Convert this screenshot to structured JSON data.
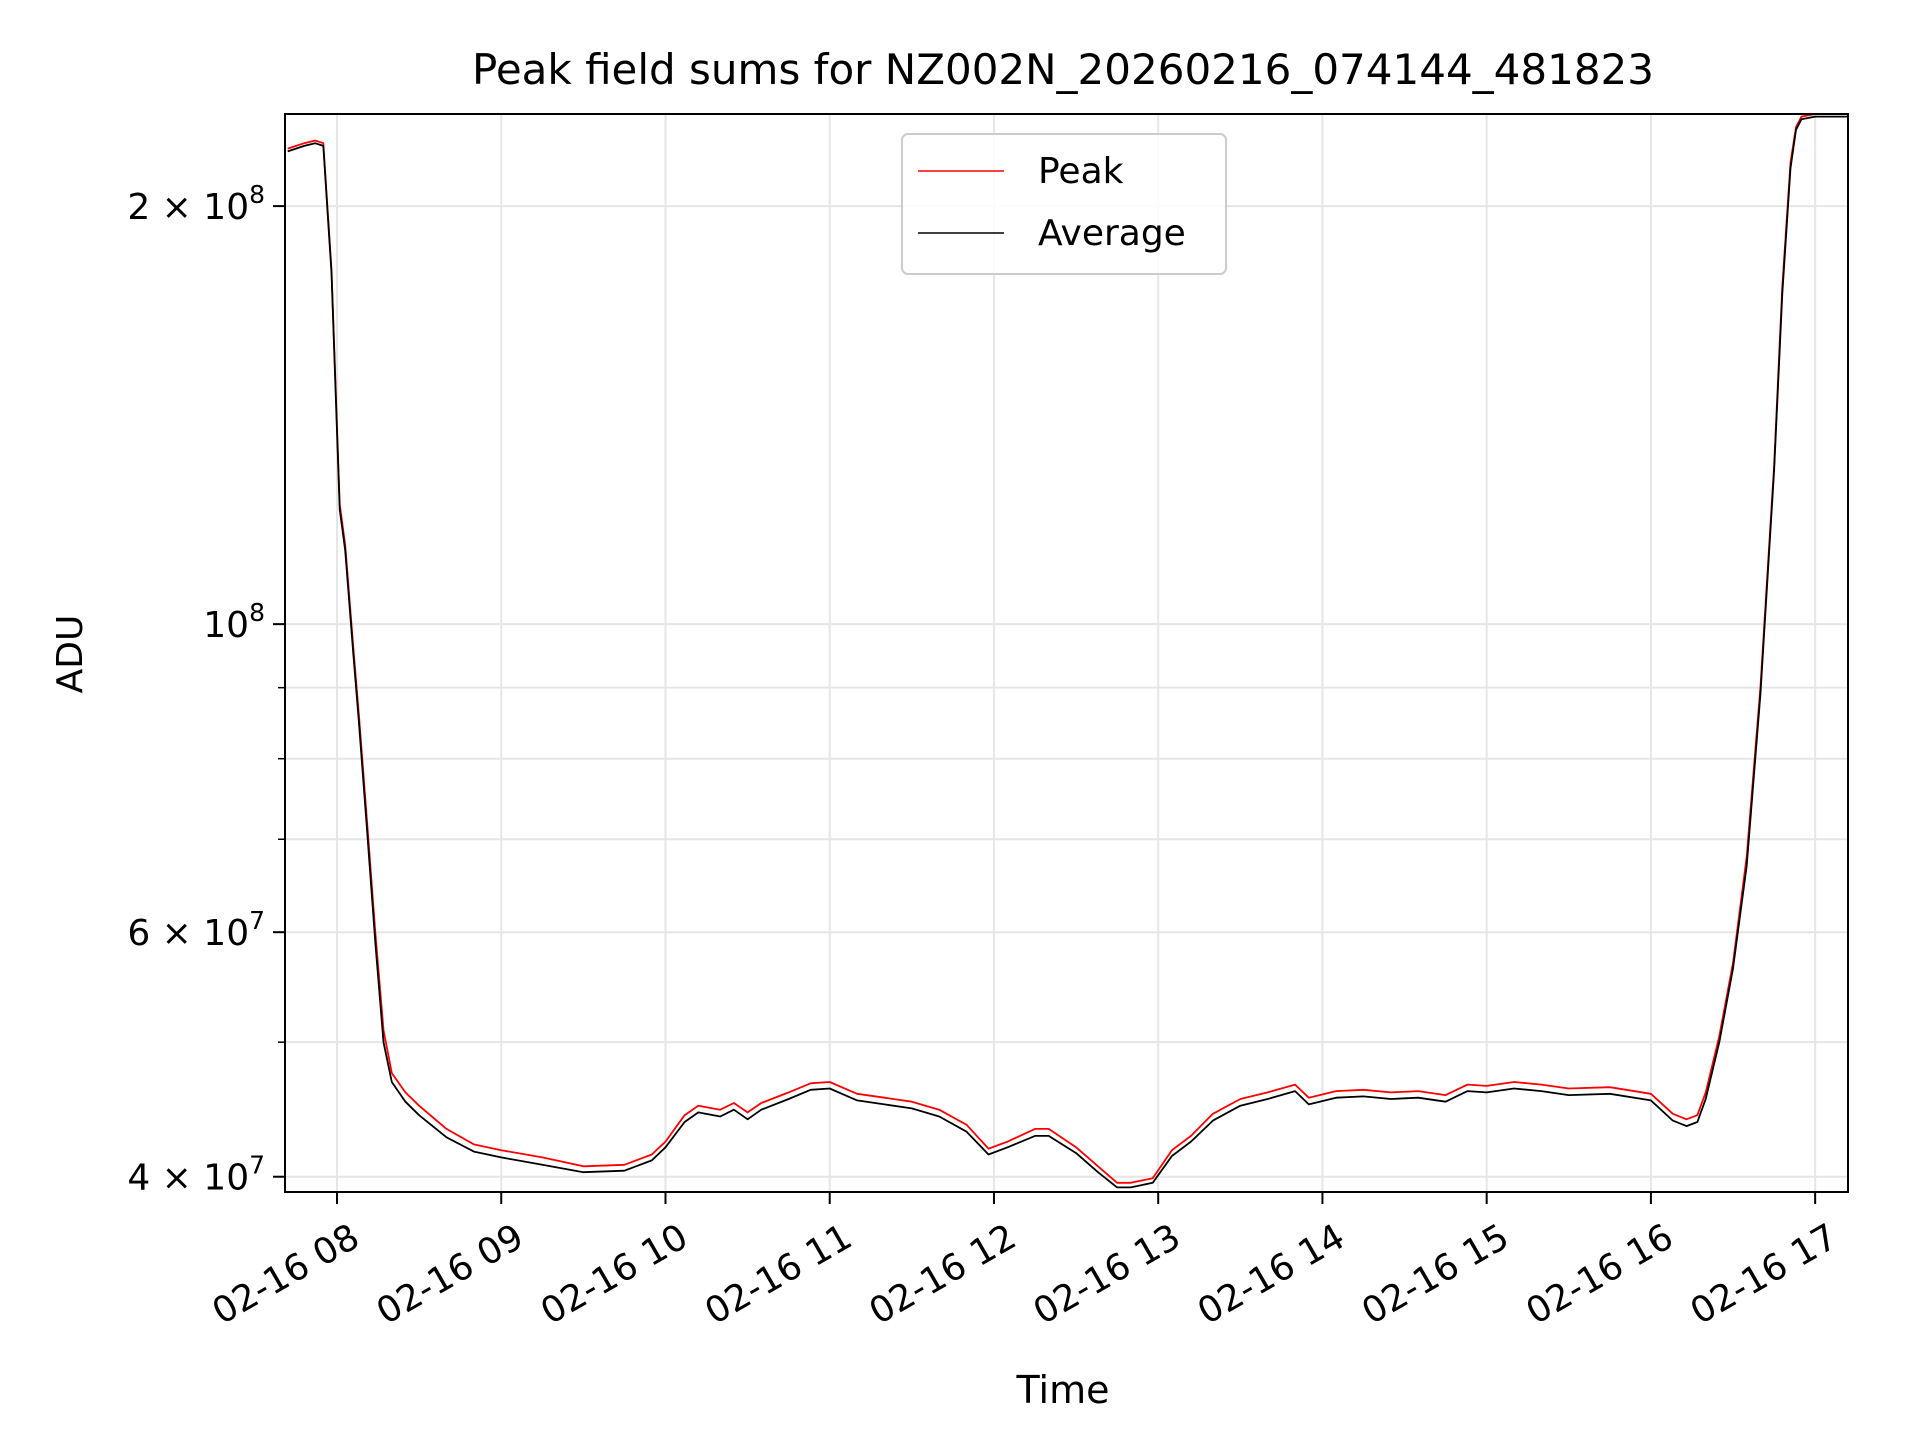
{
  "chart_data": {
    "type": "line",
    "title": "Peak field sums for NZ002N_20260216_074144_481823",
    "xlabel": "Time",
    "ylabel": "ADU",
    "x_range": [
      "2026-02-16T07:41:00",
      "2026-02-16T17:12:00"
    ],
    "y_range": [
      39000000,
      233000000
    ],
    "y_scale": "log",
    "grid": true,
    "legend_position": "top-center",
    "x_ticks": [
      {
        "value": "2026-02-16T08:00:00",
        "label": "02-16 08"
      },
      {
        "value": "2026-02-16T09:00:00",
        "label": "02-16 09"
      },
      {
        "value": "2026-02-16T10:00:00",
        "label": "02-16 10"
      },
      {
        "value": "2026-02-16T11:00:00",
        "label": "02-16 11"
      },
      {
        "value": "2026-02-16T12:00:00",
        "label": "02-16 12"
      },
      {
        "value": "2026-02-16T13:00:00",
        "label": "02-16 13"
      },
      {
        "value": "2026-02-16T14:00:00",
        "label": "02-16 14"
      },
      {
        "value": "2026-02-16T15:00:00",
        "label": "02-16 15"
      },
      {
        "value": "2026-02-16T16:00:00",
        "label": "02-16 16"
      },
      {
        "value": "2026-02-16T17:00:00",
        "label": "02-16 17"
      }
    ],
    "y_ticks": [
      {
        "value": 40000000,
        "base": "4 × 10",
        "exp": "7"
      },
      {
        "value": 60000000,
        "base": "6 × 10",
        "exp": "7"
      },
      {
        "value": 100000000,
        "base": "10",
        "exp": "8"
      },
      {
        "value": 200000000,
        "base": "2 × 10",
        "exp": "8"
      }
    ],
    "y_minor_ticks": [
      50000000,
      70000000,
      80000000,
      90000000
    ],
    "series": [
      {
        "name": "Peak",
        "color": "#ff0000",
        "x": [
          "2026-02-16T07:42:00",
          "2026-02-16T07:48:00",
          "2026-02-16T07:52:00",
          "2026-02-16T07:55:00",
          "2026-02-16T07:58:00",
          "2026-02-16T08:01:00",
          "2026-02-16T08:03:00",
          "2026-02-16T08:06:00",
          "2026-02-16T08:08:00",
          "2026-02-16T08:11:00",
          "2026-02-16T08:14:00",
          "2026-02-16T08:17:00",
          "2026-02-16T08:20:00",
          "2026-02-16T08:25:00",
          "2026-02-16T08:30:00",
          "2026-02-16T08:40:00",
          "2026-02-16T08:50:00",
          "2026-02-16T09:00:00",
          "2026-02-16T09:15:00",
          "2026-02-16T09:30:00",
          "2026-02-16T09:45:00",
          "2026-02-16T09:55:00",
          "2026-02-16T10:00:00",
          "2026-02-16T10:07:00",
          "2026-02-16T10:12:00",
          "2026-02-16T10:20:00",
          "2026-02-16T10:25:00",
          "2026-02-16T10:30:00",
          "2026-02-16T10:35:00",
          "2026-02-16T10:45:00",
          "2026-02-16T10:53:00",
          "2026-02-16T11:00:00",
          "2026-02-16T11:10:00",
          "2026-02-16T11:20:00",
          "2026-02-16T11:30:00",
          "2026-02-16T11:40:00",
          "2026-02-16T11:50:00",
          "2026-02-16T11:58:00",
          "2026-02-16T12:05:00",
          "2026-02-16T12:15:00",
          "2026-02-16T12:20:00",
          "2026-02-16T12:30:00",
          "2026-02-16T12:38:00",
          "2026-02-16T12:45:00",
          "2026-02-16T12:50:00",
          "2026-02-16T12:58:00",
          "2026-02-16T13:05:00",
          "2026-02-16T13:12:00",
          "2026-02-16T13:20:00",
          "2026-02-16T13:30:00",
          "2026-02-16T13:40:00",
          "2026-02-16T13:50:00",
          "2026-02-16T13:55:00",
          "2026-02-16T14:05:00",
          "2026-02-16T14:15:00",
          "2026-02-16T14:25:00",
          "2026-02-16T14:35:00",
          "2026-02-16T14:45:00",
          "2026-02-16T14:53:00",
          "2026-02-16T15:00:00",
          "2026-02-16T15:10:00",
          "2026-02-16T15:20:00",
          "2026-02-16T15:30:00",
          "2026-02-16T15:45:00",
          "2026-02-16T16:00:00",
          "2026-02-16T16:08:00",
          "2026-02-16T16:13:00",
          "2026-02-16T16:17:00",
          "2026-02-16T16:20:00",
          "2026-02-16T16:25:00",
          "2026-02-16T16:30:00",
          "2026-02-16T16:35:00",
          "2026-02-16T16:40:00",
          "2026-02-16T16:45:00",
          "2026-02-16T16:48:00",
          "2026-02-16T16:51:00",
          "2026-02-16T16:53:00",
          "2026-02-16T16:55:00",
          "2026-02-16T17:00:00",
          "2026-02-16T17:05:00",
          "2026-02-16T17:12:00"
        ],
        "values": [
          220000000,
          222000000,
          223000000,
          222000000,
          180000000,
          122000000,
          114000000,
          96000000,
          86000000,
          72000000,
          60000000,
          51000000,
          47500000,
          46000000,
          45000000,
          43300000,
          42200000,
          41800000,
          41300000,
          40700000,
          40800000,
          41500000,
          42400000,
          44300000,
          45000000,
          44700000,
          45200000,
          44500000,
          45200000,
          46000000,
          46700000,
          46800000,
          45900000,
          45600000,
          45300000,
          44700000,
          43600000,
          41900000,
          42400000,
          43300000,
          43300000,
          42000000,
          40700000,
          39600000,
          39600000,
          39900000,
          41800000,
          42800000,
          44400000,
          45500000,
          46000000,
          46600000,
          45600000,
          46100000,
          46200000,
          46000000,
          46100000,
          45800000,
          46600000,
          46500000,
          46800000,
          46600000,
          46300000,
          46400000,
          45900000,
          44400000,
          44000000,
          44300000,
          46000000,
          50500000,
          57000000,
          68000000,
          90000000,
          130000000,
          175000000,
          215000000,
          228000000,
          232000000,
          233000000,
          233000000,
          233000000
        ]
      },
      {
        "name": "Average",
        "color": "#000000",
        "x": [
          "2026-02-16T07:42:00",
          "2026-02-16T07:48:00",
          "2026-02-16T07:52:00",
          "2026-02-16T07:55:00",
          "2026-02-16T07:58:00",
          "2026-02-16T08:01:00",
          "2026-02-16T08:03:00",
          "2026-02-16T08:06:00",
          "2026-02-16T08:08:00",
          "2026-02-16T08:11:00",
          "2026-02-16T08:14:00",
          "2026-02-16T08:17:00",
          "2026-02-16T08:20:00",
          "2026-02-16T08:25:00",
          "2026-02-16T08:30:00",
          "2026-02-16T08:40:00",
          "2026-02-16T08:50:00",
          "2026-02-16T09:00:00",
          "2026-02-16T09:15:00",
          "2026-02-16T09:30:00",
          "2026-02-16T09:45:00",
          "2026-02-16T09:55:00",
          "2026-02-16T10:00:00",
          "2026-02-16T10:07:00",
          "2026-02-16T10:12:00",
          "2026-02-16T10:20:00",
          "2026-02-16T10:25:00",
          "2026-02-16T10:30:00",
          "2026-02-16T10:35:00",
          "2026-02-16T10:45:00",
          "2026-02-16T10:53:00",
          "2026-02-16T11:00:00",
          "2026-02-16T11:10:00",
          "2026-02-16T11:20:00",
          "2026-02-16T11:30:00",
          "2026-02-16T11:40:00",
          "2026-02-16T11:50:00",
          "2026-02-16T11:58:00",
          "2026-02-16T12:05:00",
          "2026-02-16T12:15:00",
          "2026-02-16T12:20:00",
          "2026-02-16T12:30:00",
          "2026-02-16T12:38:00",
          "2026-02-16T12:45:00",
          "2026-02-16T12:50:00",
          "2026-02-16T12:58:00",
          "2026-02-16T13:05:00",
          "2026-02-16T13:12:00",
          "2026-02-16T13:20:00",
          "2026-02-16T13:30:00",
          "2026-02-16T13:40:00",
          "2026-02-16T13:50:00",
          "2026-02-16T13:55:00",
          "2026-02-16T14:05:00",
          "2026-02-16T14:15:00",
          "2026-02-16T14:25:00",
          "2026-02-16T14:35:00",
          "2026-02-16T14:45:00",
          "2026-02-16T14:53:00",
          "2026-02-16T15:00:00",
          "2026-02-16T15:10:00",
          "2026-02-16T15:20:00",
          "2026-02-16T15:30:00",
          "2026-02-16T15:45:00",
          "2026-02-16T16:00:00",
          "2026-02-16T16:08:00",
          "2026-02-16T16:13:00",
          "2026-02-16T16:17:00",
          "2026-02-16T16:20:00",
          "2026-02-16T16:25:00",
          "2026-02-16T16:30:00",
          "2026-02-16T16:35:00",
          "2026-02-16T16:40:00",
          "2026-02-16T16:45:00",
          "2026-02-16T16:48:00",
          "2026-02-16T16:51:00",
          "2026-02-16T16:53:00",
          "2026-02-16T16:55:00",
          "2026-02-16T17:00:00",
          "2026-02-16T17:05:00",
          "2026-02-16T17:12:00"
        ],
        "values": [
          219000000,
          221000000,
          222000000,
          221000000,
          179000000,
          121000000,
          113000000,
          95000000,
          85000000,
          71000000,
          59000000,
          50000000,
          46800000,
          45300000,
          44300000,
          42700000,
          41700000,
          41300000,
          40800000,
          40300000,
          40400000,
          41100000,
          42000000,
          43800000,
          44500000,
          44200000,
          44700000,
          44000000,
          44700000,
          45500000,
          46200000,
          46300000,
          45400000,
          45100000,
          44800000,
          44200000,
          43100000,
          41500000,
          42000000,
          42800000,
          42800000,
          41600000,
          40300000,
          39300000,
          39300000,
          39600000,
          41400000,
          42400000,
          43900000,
          45000000,
          45500000,
          46100000,
          45100000,
          45600000,
          45700000,
          45500000,
          45600000,
          45300000,
          46100000,
          46000000,
          46300000,
          46100000,
          45800000,
          45900000,
          45400000,
          43900000,
          43500000,
          43800000,
          45500000,
          50000000,
          56500000,
          67000000,
          89000000,
          129000000,
          173000000,
          213000000,
          227000000,
          231000000,
          232000000,
          232000000,
          232000000
        ]
      }
    ]
  }
}
